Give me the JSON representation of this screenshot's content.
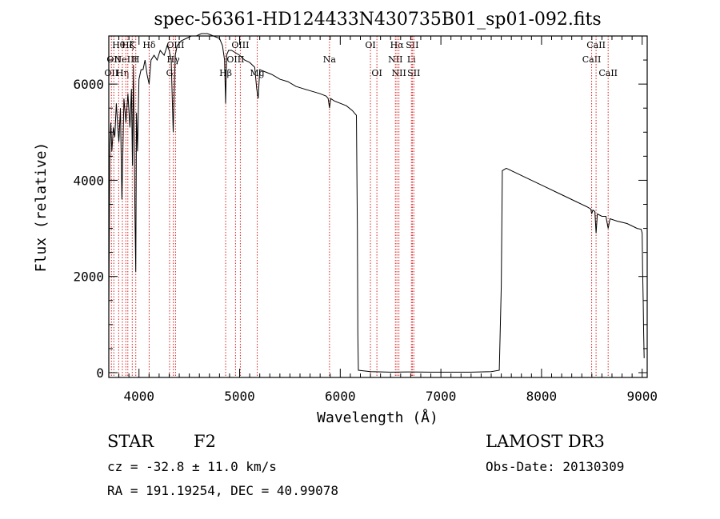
{
  "chart_data": {
    "type": "line",
    "title": "spec-56361-HD124433N430735B01_sp01-092.fits",
    "xlabel": "Wavelength (Å)",
    "ylabel": "Flux (relative)",
    "xlim": [
      3700,
      9050
    ],
    "ylim": [
      -100,
      7000
    ],
    "xticks": [
      4000,
      5000,
      6000,
      7000,
      8000,
      9000
    ],
    "yticks": [
      0,
      2000,
      4000,
      6000
    ],
    "series": [
      {
        "name": "spectrum",
        "x": [
          3700,
          3710,
          3720,
          3730,
          3745,
          3760,
          3775,
          3790,
          3800,
          3815,
          3830,
          3850,
          3870,
          3890,
          3910,
          3925,
          3935,
          3945,
          3960,
          3968,
          3975,
          3985,
          4000,
          4020,
          4040,
          4060,
          4080,
          4101,
          4120,
          4150,
          4180,
          4210,
          4250,
          4280,
          4300,
          4320,
          4340,
          4360,
          4380,
          4420,
          4470,
          4520,
          4570,
          4620,
          4680,
          4740,
          4800,
          4830,
          4850,
          4861,
          4870,
          4890,
          4920,
          4960,
          5000,
          5050,
          5100,
          5150,
          5170,
          5184,
          5200,
          5260,
          5320,
          5400,
          5480,
          5560,
          5640,
          5720,
          5800,
          5860,
          5880,
          5893,
          5905,
          5940,
          6000,
          6060,
          6120,
          6160,
          6170,
          6175,
          6180,
          6300,
          6500,
          6700,
          6900,
          7100,
          7300,
          7500,
          7580,
          7600,
          7610,
          7650,
          7750,
          7850,
          7950,
          8050,
          8150,
          8250,
          8350,
          8450,
          8490,
          8498,
          8510,
          8530,
          8542,
          8555,
          8600,
          8640,
          8662,
          8680,
          8750,
          8850,
          8950,
          8990,
          9000,
          9005,
          9010,
          9015,
          9020
        ],
        "y": [
          1200,
          4700,
          5200,
          4600,
          5100,
          4900,
          5600,
          5100,
          4800,
          5500,
          3600,
          5700,
          5200,
          5800,
          5100,
          5900,
          4300,
          6400,
          3300,
          2100,
          5400,
          4600,
          6100,
          6300,
          6300,
          6500,
          6200,
          6000,
          6500,
          6600,
          6500,
          6700,
          6600,
          6800,
          6700,
          6500,
          5000,
          6600,
          6800,
          6900,
          6950,
          7000,
          7000,
          7050,
          7050,
          7000,
          6950,
          6800,
          6500,
          5600,
          6600,
          6700,
          6700,
          6650,
          6600,
          6500,
          6450,
          6350,
          5900,
          5700,
          6300,
          6250,
          6200,
          6100,
          6050,
          5950,
          5900,
          5850,
          5800,
          5750,
          5700,
          5500,
          5700,
          5650,
          5600,
          5550,
          5450,
          5350,
          3000,
          800,
          50,
          20,
          10,
          15,
          10,
          10,
          10,
          20,
          50,
          1800,
          4200,
          4250,
          4150,
          4050,
          3950,
          3850,
          3750,
          3650,
          3550,
          3450,
          3400,
          3300,
          3380,
          3350,
          2900,
          3300,
          3250,
          3250,
          3000,
          3200,
          3150,
          3100,
          3000,
          2980,
          2900,
          2100,
          1500,
          800,
          300
        ]
      }
    ],
    "line_marks": [
      {
        "wl": 3726,
        "label": "OII",
        "row": 3
      },
      {
        "wl": 3750,
        "label": "OII",
        "row": 2
      },
      {
        "wl": 3798,
        "label": "Hθ",
        "row": 1
      },
      {
        "wl": 3835,
        "label": "Hη",
        "row": 3
      },
      {
        "wl": 3869,
        "label": "NeIII",
        "row": 2
      },
      {
        "wl": 3889,
        "label": "Hζ",
        "row": 1
      },
      {
        "wl": 3933,
        "label": "K",
        "row": 1
      },
      {
        "wl": 3968,
        "label": "H",
        "row": 2
      },
      {
        "wl": 4101,
        "label": "Hδ",
        "row": 1
      },
      {
        "wl": 4304,
        "label": "G",
        "row": 3
      },
      {
        "wl": 4341,
        "label": "Hγ",
        "row": 2
      },
      {
        "wl": 4363,
        "label": "OIII",
        "row": 1
      },
      {
        "wl": 4861,
        "label": "Hβ",
        "row": 3
      },
      {
        "wl": 4959,
        "label": "OIII",
        "row": 2
      },
      {
        "wl": 5007,
        "label": "OIII",
        "row": 1
      },
      {
        "wl": 5175,
        "label": "Mg",
        "row": 3
      },
      {
        "wl": 5893,
        "label": "Na",
        "row": 2
      },
      {
        "wl": 6300,
        "label": "OI",
        "row": 1
      },
      {
        "wl": 6364,
        "label": "OI",
        "row": 3
      },
      {
        "wl": 6548,
        "label": "NII",
        "row": 2
      },
      {
        "wl": 6563,
        "label": "Hα",
        "row": 1
      },
      {
        "wl": 6583,
        "label": "NII",
        "row": 3
      },
      {
        "wl": 6707,
        "label": "Li",
        "row": 2
      },
      {
        "wl": 6716,
        "label": "SII",
        "row": 1
      },
      {
        "wl": 6731,
        "label": "SII",
        "row": 3
      },
      {
        "wl": 8498,
        "label": "CaII",
        "row": 2
      },
      {
        "wl": 8542,
        "label": "CaII",
        "row": 1
      },
      {
        "wl": 8662,
        "label": "CaII",
        "row": 3
      }
    ]
  },
  "info": {
    "object_type": "STAR",
    "subclass": "F2",
    "survey": "LAMOST DR3",
    "redshift": "cz = -32.8 ± 11.0 km/s",
    "obs_date": "Obs-Date: 20130309",
    "coords": "RA = 191.19254, DEC =  40.99078"
  },
  "colors": {
    "line_marks": "#d62020",
    "spectrum": "#000000",
    "axes": "#000000"
  }
}
